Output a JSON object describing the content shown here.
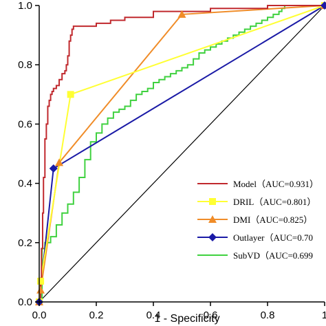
{
  "chart_data": {
    "type": "line",
    "title": "",
    "xlabel": "1 - Specificity",
    "ylabel": "",
    "xlim": [
      0,
      1
    ],
    "ylim": [
      0,
      1
    ],
    "x_ticks": [
      "0.0",
      "0.2",
      "0.4",
      "0.6",
      "0.8",
      "1"
    ],
    "y_ticks": [
      "0.0",
      "0.2",
      "0.4",
      "0.6",
      "0.8",
      "1.0"
    ],
    "grid": false,
    "legend_position": "bottom-right",
    "reference_line": {
      "x": [
        0,
        1
      ],
      "y": [
        0,
        1
      ],
      "color": "#000000"
    },
    "series": [
      {
        "name": "Model",
        "legend_label": "Model（AUC=0.931）",
        "color": "#c0282d",
        "marker": "none",
        "step": true,
        "x": [
          0,
          0.005,
          0.008,
          0.012,
          0.015,
          0.02,
          0.025,
          0.03,
          0.035,
          0.04,
          0.045,
          0.05,
          0.06,
          0.07,
          0.08,
          0.09,
          0.095,
          0.1,
          0.105,
          0.11,
          0.115,
          0.12,
          0.125,
          0.15,
          0.2,
          0.25,
          0.3,
          0.4,
          0.5,
          0.6,
          0.7,
          0.8,
          0.9,
          1.0
        ],
        "y": [
          0,
          0.08,
          0.18,
          0.3,
          0.42,
          0.55,
          0.6,
          0.66,
          0.68,
          0.7,
          0.71,
          0.72,
          0.73,
          0.75,
          0.77,
          0.78,
          0.8,
          0.83,
          0.88,
          0.9,
          0.92,
          0.93,
          0.93,
          0.93,
          0.94,
          0.95,
          0.96,
          0.98,
          0.98,
          0.99,
          0.99,
          1.0,
          1.0,
          1.0
        ]
      },
      {
        "name": "DRIL",
        "legend_label": "DRIL（AUC=0.801）",
        "color": "#ffff33",
        "marker": "square",
        "step": false,
        "x": [
          0,
          0.005,
          0.11,
          1.0
        ],
        "y": [
          0,
          0.07,
          0.7,
          1.0
        ]
      },
      {
        "name": "DMI",
        "legend_label": "DMI（AUC=0.825）",
        "color": "#f08c28",
        "marker": "triangle",
        "step": false,
        "x": [
          0,
          0.005,
          0.07,
          0.5,
          1.0
        ],
        "y": [
          0,
          0.04,
          0.47,
          0.97,
          1.0
        ]
      },
      {
        "name": "Outlayer",
        "legend_label": "Outlayer（AUC=0.70",
        "color": "#1a1aa6",
        "marker": "diamond",
        "step": false,
        "x": [
          0,
          0.05,
          1.0
        ],
        "y": [
          0,
          0.45,
          1.0
        ]
      },
      {
        "name": "SubVD",
        "legend_label": "SubVD（AUC=0.699",
        "color": "#3fd13f",
        "marker": "none",
        "step": true,
        "x": [
          0,
          0.01,
          0.02,
          0.04,
          0.06,
          0.08,
          0.1,
          0.12,
          0.14,
          0.16,
          0.18,
          0.2,
          0.22,
          0.24,
          0.26,
          0.28,
          0.3,
          0.32,
          0.34,
          0.36,
          0.38,
          0.4,
          0.42,
          0.44,
          0.46,
          0.48,
          0.5,
          0.52,
          0.54,
          0.56,
          0.58,
          0.6,
          0.62,
          0.64,
          0.66,
          0.68,
          0.7,
          0.72,
          0.74,
          0.76,
          0.78,
          0.8,
          0.82,
          0.84,
          0.85,
          0.86,
          1.0
        ],
        "y": [
          0,
          0.18,
          0.2,
          0.22,
          0.26,
          0.3,
          0.33,
          0.37,
          0.42,
          0.48,
          0.54,
          0.57,
          0.6,
          0.62,
          0.64,
          0.65,
          0.66,
          0.68,
          0.7,
          0.71,
          0.72,
          0.74,
          0.75,
          0.76,
          0.77,
          0.78,
          0.79,
          0.8,
          0.82,
          0.84,
          0.85,
          0.86,
          0.87,
          0.88,
          0.89,
          0.9,
          0.91,
          0.92,
          0.93,
          0.94,
          0.95,
          0.96,
          0.97,
          0.98,
          0.99,
          1.0,
          1.0
        ]
      }
    ]
  }
}
